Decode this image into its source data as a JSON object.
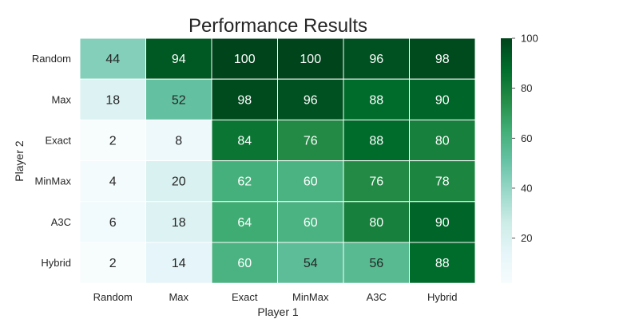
{
  "chart_data": {
    "type": "heatmap",
    "title": "Performance Results",
    "xlabel": "Player 1",
    "ylabel": "Player 2",
    "x_categories": [
      "Random",
      "Max",
      "Exact",
      "MinMax",
      "A3C",
      "Hybrid"
    ],
    "y_categories": [
      "Random",
      "Max",
      "Exact",
      "MinMax",
      "A3C",
      "Hybrid"
    ],
    "values": [
      [
        44,
        94,
        100,
        100,
        96,
        98
      ],
      [
        18,
        52,
        98,
        96,
        88,
        90
      ],
      [
        2,
        8,
        84,
        76,
        88,
        80
      ],
      [
        4,
        20,
        62,
        60,
        76,
        78
      ],
      [
        6,
        18,
        64,
        60,
        80,
        90
      ],
      [
        2,
        14,
        60,
        54,
        56,
        88
      ]
    ],
    "colormap": "greens",
    "vmin": 2,
    "vmax": 100,
    "colorbar_ticks": [
      20,
      40,
      60,
      80,
      100
    ],
    "annotated": true,
    "cell_borders": "white"
  }
}
